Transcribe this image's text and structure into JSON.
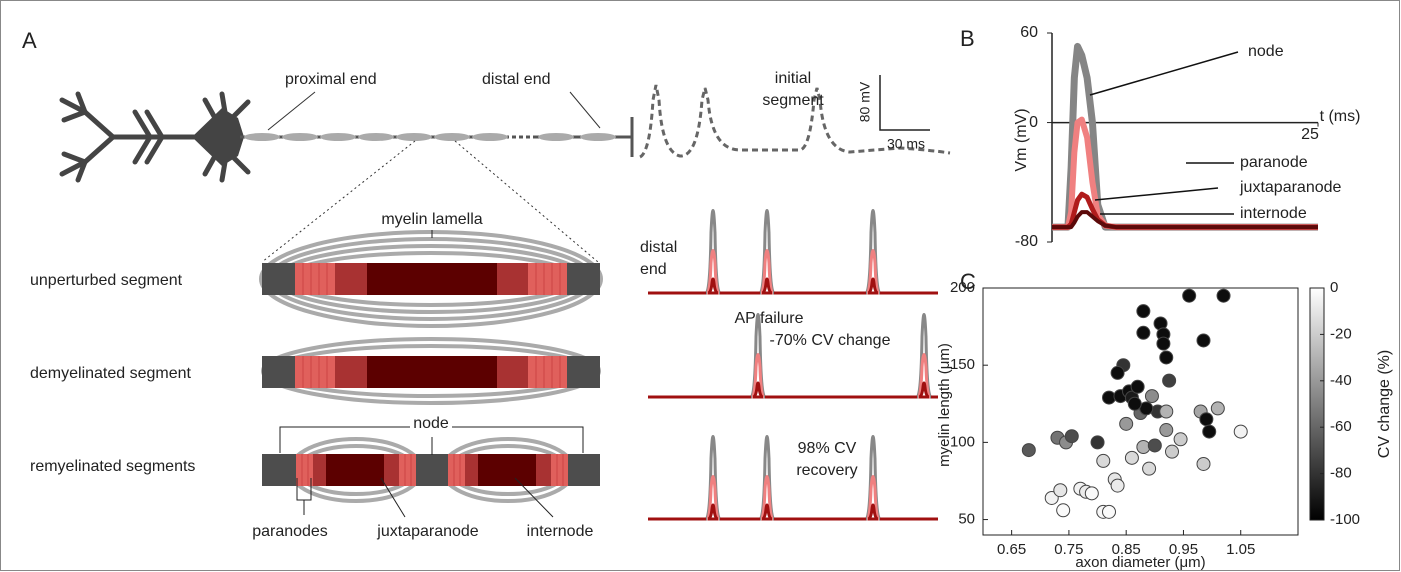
{
  "panel_labels": [
    "A",
    "B",
    "C"
  ],
  "diagram": {
    "proximal_end": "proximal end",
    "distal_end": "distal end",
    "initial_segment": "initial segment",
    "scale_mv": "80 mV",
    "scale_ms": "30 ms",
    "myelin_lamella": "myelin lamella",
    "rows": [
      "unperturbed segment",
      "demyelinated segment",
      "remyelinated segments"
    ],
    "node": "node",
    "paranodes": "paranodes",
    "juxtaparanode": "juxtaparanode",
    "internode": "internode",
    "trace_labels": [
      "distal end",
      "AP failure",
      "-70% CV change",
      "98% CV recovery"
    ]
  },
  "chart_data": [
    {
      "type": "line",
      "xlabel": "t (ms)",
      "ylabel": "Vm (mV)",
      "xlim": [
        0,
        25
      ],
      "ylim": [
        -80,
        60
      ],
      "xticks": [
        25
      ],
      "yticks": [
        -80,
        0,
        60
      ],
      "x": [
        0,
        1.5,
        1.8,
        2.1,
        2.4,
        2.8,
        3.3,
        3.8,
        4.3,
        5,
        6,
        8,
        25
      ],
      "series": [
        {
          "name": "node",
          "color": "#858585",
          "values": [
            -70,
            -70,
            -30,
            30,
            51,
            45,
            30,
            0,
            -55,
            -70,
            -70,
            -70,
            -70
          ]
        },
        {
          "name": "paranode",
          "color": "#f08080",
          "values": [
            -70,
            -70,
            -60,
            -20,
            0,
            2,
            -10,
            -40,
            -62,
            -69,
            -70,
            -70,
            -70
          ]
        },
        {
          "name": "juxtaparanode",
          "color": "#b01c1c",
          "values": [
            -70,
            -70,
            -68,
            -60,
            -52,
            -48,
            -50,
            -58,
            -65,
            -69,
            -70,
            -70,
            -70
          ]
        },
        {
          "name": "internode",
          "color": "#5c0a0a",
          "values": [
            -70,
            -70,
            -70,
            -67,
            -63,
            -60,
            -60,
            -63,
            -66,
            -69,
            -70,
            -70,
            -70
          ]
        }
      ]
    },
    {
      "type": "scatter",
      "xlabel": "axon diameter (μm)",
      "ylabel": "myelin length (μm)",
      "xlim": [
        0.6,
        1.15
      ],
      "ylim": [
        40,
        200
      ],
      "xticks": [
        0.65,
        0.75,
        0.85,
        0.95,
        1.05
      ],
      "yticks": [
        50,
        100,
        150,
        200
      ],
      "x": [
        0.68,
        0.73,
        0.745,
        0.755,
        0.72,
        0.735,
        0.74,
        0.77,
        0.78,
        0.79,
        0.81,
        0.82,
        0.83,
        0.835,
        0.81,
        0.8,
        0.86,
        0.89,
        0.88,
        0.9,
        0.92,
        0.93,
        0.945,
        0.985,
        0.98,
        1.01,
        1.05,
        0.99,
        0.995,
        0.82,
        0.84,
        0.845,
        0.835,
        0.855,
        0.86,
        0.87,
        0.85,
        0.875,
        0.895,
        0.905,
        0.92,
        0.925,
        0.88,
        0.88,
        0.91,
        0.915,
        0.915,
        0.92,
        0.96,
        0.985,
        1.02,
        0.885,
        0.865
      ],
      "values": [
        95,
        103,
        100,
        104,
        64,
        69,
        56,
        70,
        68,
        67,
        55,
        55,
        76,
        72,
        88,
        100,
        90,
        83,
        97,
        98,
        108,
        94,
        102,
        86,
        120,
        122,
        107,
        115,
        107,
        129,
        130,
        150,
        145,
        133,
        129,
        136,
        112,
        119,
        130,
        120,
        120,
        140,
        185,
        171,
        177,
        170,
        164,
        155,
        195,
        166,
        195,
        122,
        125
      ],
      "color_values": [
        -65,
        -55,
        -45,
        -70,
        -5,
        -10,
        -2,
        -5,
        -8,
        -2,
        -3,
        -2,
        -10,
        -8,
        -15,
        -80,
        -15,
        -15,
        -30,
        -70,
        -40,
        -20,
        -20,
        -20,
        -35,
        -30,
        -5,
        -95,
        -95,
        -95,
        -95,
        -80,
        -95,
        -95,
        -90,
        -95,
        -40,
        -60,
        -45,
        -80,
        -30,
        -75,
        -95,
        -95,
        -95,
        -95,
        -95,
        -95,
        -95,
        -95,
        -95,
        -95,
        -95
      ],
      "colorbar": {
        "label": "CV change (%)",
        "lim": [
          -100,
          0
        ],
        "ticks": [
          0,
          -20,
          -40,
          -60,
          -80,
          -100
        ]
      }
    }
  ]
}
